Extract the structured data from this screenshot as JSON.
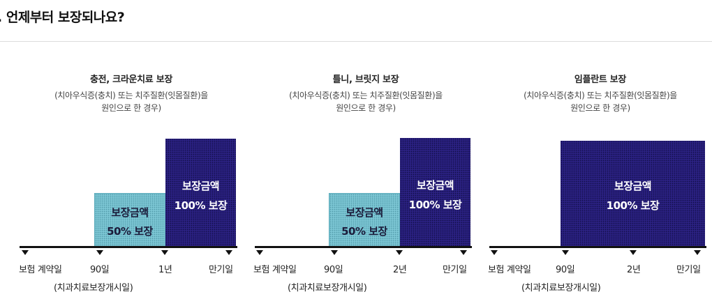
{
  "page": {
    "heading": ". 언제부터 보장되나요?"
  },
  "colors": {
    "light_bar": "#7cc6d4",
    "dark_bar": "#2b2182",
    "axis": "#111111"
  },
  "panels": [
    {
      "title": "충전, 크라운치료 보장",
      "subtitle_line1": "(치아우식증(충치) 또는 치주질환(잇몸질환)을",
      "subtitle_line2": "원인으로 한 경우)",
      "bars": [
        {
          "label_line1": "보장금액",
          "label_line2": "50% 보장",
          "percent": 50
        },
        {
          "label_line1": "보장금액",
          "label_line2": "100% 보장",
          "percent": 100
        }
      ],
      "ticks": [
        "보험 계약일",
        "90일",
        "1년",
        "만기일"
      ],
      "tick_note": "(치과치료보장개시일)"
    },
    {
      "title": "틀니, 브릿지 보장",
      "subtitle_line1": "(치아우식증(충치) 또는 치주질환(잇몸질환)을",
      "subtitle_line2": "원인으로 한 경우)",
      "bars": [
        {
          "label_line1": "보장금액",
          "label_line2": "50% 보장",
          "percent": 50
        },
        {
          "label_line1": "보장금액",
          "label_line2": "100% 보장",
          "percent": 100
        }
      ],
      "ticks": [
        "보험 계약일",
        "90일",
        "2년",
        "만기일"
      ],
      "tick_note": "(치과치료보장개시일)"
    },
    {
      "title": "임플란트 보장",
      "subtitle_line1": "(치아우식증(충치) 또는 치주질환(잇몸질환)을",
      "subtitle_line2": "원인으로 한 경우)",
      "bars": [
        {
          "label_line1": "보장금액",
          "label_line2": "100% 보장",
          "percent": 100
        }
      ],
      "ticks": [
        "보험 계약일",
        "90일",
        "2년",
        "만기일"
      ],
      "tick_note": "(치과치료보장개시일)"
    }
  ]
}
